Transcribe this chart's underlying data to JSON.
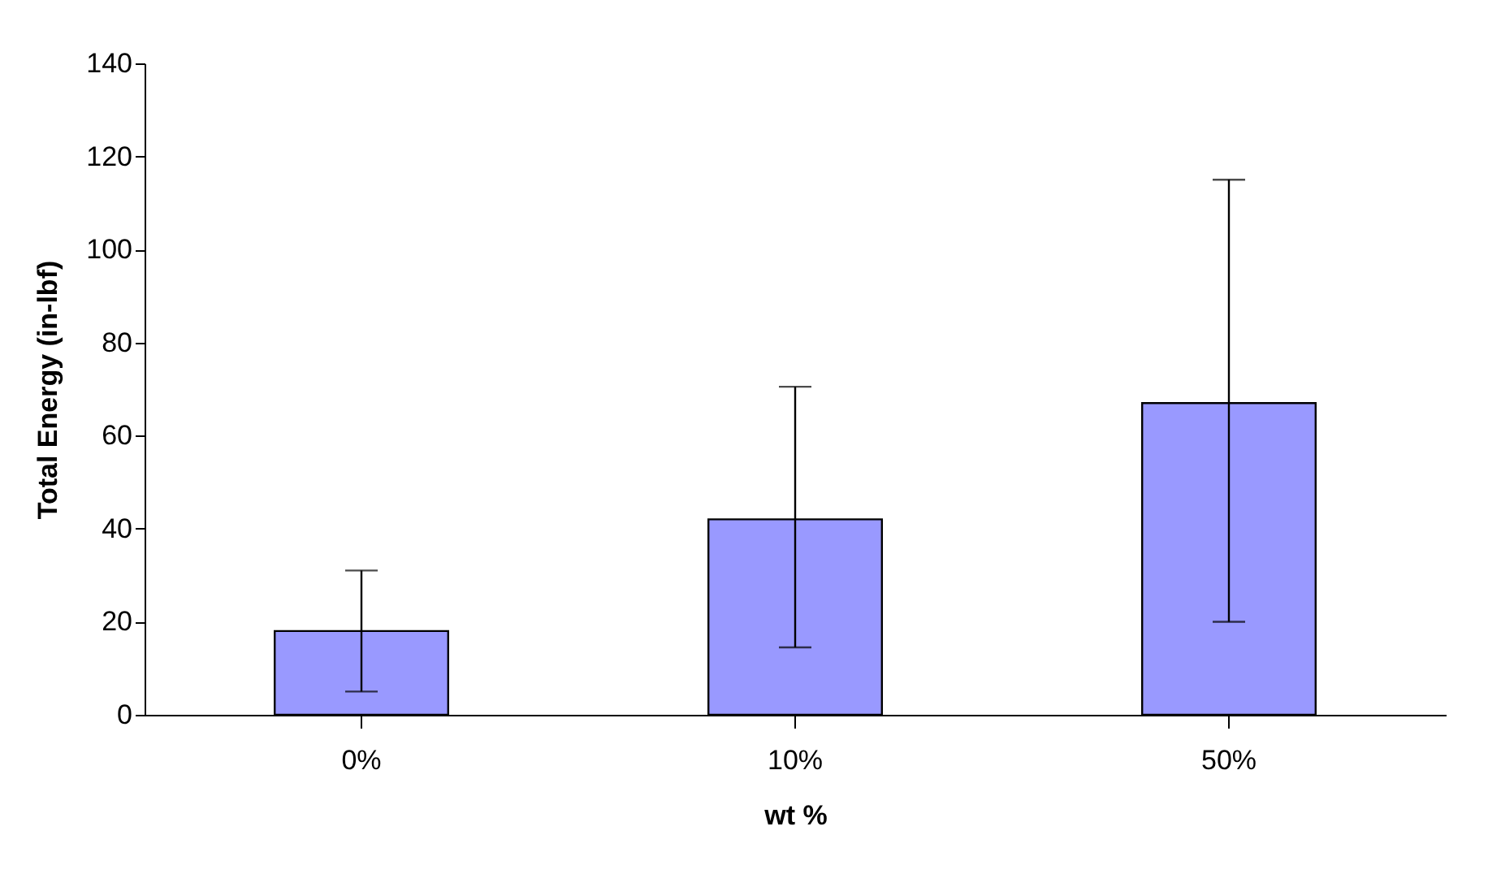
{
  "chart_data": {
    "type": "bar",
    "xlabel": "wt %",
    "ylabel": "Total Energy (in-lbf)",
    "categories": [
      "0%",
      "10%",
      "50%"
    ],
    "values": [
      18,
      42,
      67
    ],
    "errors": [
      [
        5,
        31
      ],
      [
        14.5,
        70.5
      ],
      [
        20,
        115
      ]
    ],
    "color": "#9999ff",
    "ylim": [
      0,
      140
    ],
    "yticks": [
      0,
      20,
      40,
      60,
      80,
      100,
      120,
      140
    ],
    "grid": false
  }
}
